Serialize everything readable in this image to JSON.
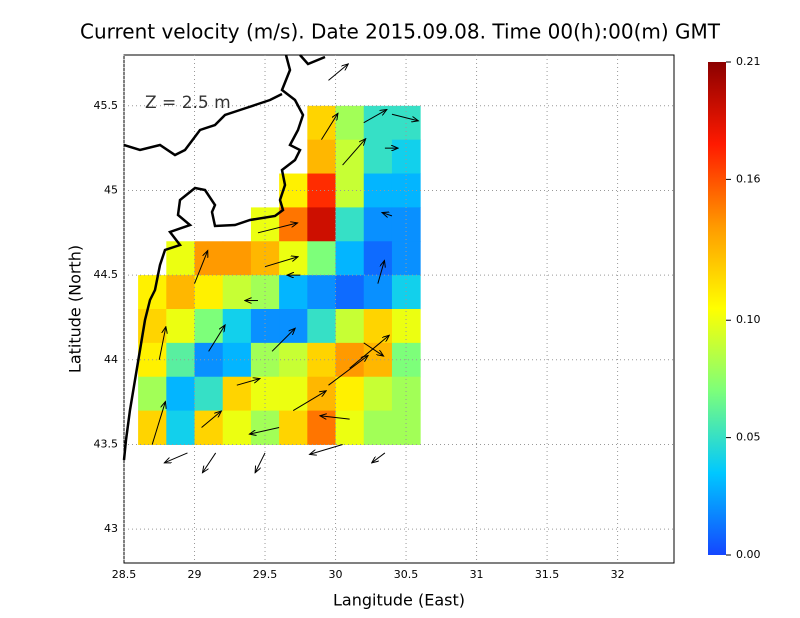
{
  "chart_data": {
    "type": "heatmap",
    "title": "Current velocity (m/s). Date 2015.09.08. Time 00(h):00(m) GMT",
    "annotation": "Z = 2.5 m",
    "xlabel": "Langitude (East)",
    "ylabel": "Latitude (North)",
    "xlim": [
      28.5,
      32.4
    ],
    "ylim": [
      42.8,
      45.8
    ],
    "xticks": [
      28.5,
      29,
      29.5,
      30,
      30.5,
      31,
      31.5,
      32
    ],
    "yticks": [
      43,
      43.5,
      44,
      44.5,
      45,
      45.5
    ],
    "grid": true,
    "x": [
      28.7,
      28.9,
      29.1,
      29.3,
      29.5,
      29.7,
      29.9,
      30.1,
      30.3,
      30.5
    ],
    "y": [
      45.4,
      45.2,
      45.0,
      44.8,
      44.6,
      44.4,
      44.2,
      44.0,
      43.8,
      43.6
    ],
    "values": [
      [
        null,
        null,
        null,
        null,
        null,
        null,
        0.12,
        0.08,
        0.05,
        0.05
      ],
      [
        null,
        null,
        null,
        null,
        null,
        null,
        0.13,
        0.09,
        0.05,
        0.04
      ],
      [
        null,
        null,
        null,
        null,
        null,
        0.11,
        0.17,
        0.09,
        0.03,
        0.03
      ],
      [
        null,
        null,
        null,
        null,
        0.1,
        0.15,
        0.19,
        0.05,
        0.02,
        0.02
      ],
      [
        null,
        0.1,
        0.14,
        0.14,
        0.13,
        0.1,
        0.07,
        0.03,
        0.01,
        0.02
      ],
      [
        0.11,
        0.13,
        0.11,
        0.09,
        0.08,
        0.03,
        0.02,
        0.01,
        0.02,
        0.04
      ],
      [
        0.12,
        0.1,
        0.07,
        0.04,
        0.02,
        0.02,
        0.05,
        0.09,
        0.12,
        0.1
      ],
      [
        0.11,
        0.06,
        0.02,
        0.03,
        0.08,
        0.09,
        0.12,
        0.14,
        0.13,
        0.07
      ],
      [
        0.08,
        0.03,
        0.05,
        0.12,
        0.1,
        0.1,
        0.13,
        0.11,
        0.09,
        0.08
      ],
      [
        0.12,
        0.04,
        0.12,
        0.1,
        0.08,
        0.12,
        0.15,
        0.1,
        0.08,
        0.08
      ]
    ],
    "colormap": [
      "#1446ff",
      "#00c8ff",
      "#7dff7a",
      "#ffff00",
      "#ff9a00",
      "#ff1a00",
      "#8b0000"
    ],
    "clim": [
      0,
      0.21
    ],
    "cticks": [
      {
        "value": 0,
        "label": "0.00"
      },
      0.05,
      {
        "value": 0.1,
        "label": "0.10"
      },
      0.16,
      0.21
    ],
    "vectors": [
      {
        "lon": 29.95,
        "lat": 45.65,
        "u": 0.06,
        "v": 0.05
      },
      {
        "lon": 30.2,
        "lat": 45.4,
        "u": 0.07,
        "v": 0.04
      },
      {
        "lon": 30.4,
        "lat": 45.45,
        "u": 0.08,
        "v": -0.02
      },
      {
        "lon": 29.9,
        "lat": 45.3,
        "u": 0.05,
        "v": 0.08
      },
      {
        "lon": 30.05,
        "lat": 45.15,
        "u": 0.07,
        "v": 0.08
      },
      {
        "lon": 30.35,
        "lat": 45.25,
        "u": 0.04,
        "v": 0
      },
      {
        "lon": 29.45,
        "lat": 44.75,
        "u": 0.12,
        "v": 0.03
      },
      {
        "lon": 29.5,
        "lat": 44.55,
        "u": 0.1,
        "v": 0.03
      },
      {
        "lon": 29.0,
        "lat": 44.45,
        "u": 0.04,
        "v": 0.1
      },
      {
        "lon": 29.45,
        "lat": 44.35,
        "u": -0.04,
        "v": 0
      },
      {
        "lon": 29.75,
        "lat": 44.5,
        "u": -0.04,
        "v": 0
      },
      {
        "lon": 30.4,
        "lat": 44.85,
        "u": -0.03,
        "v": 0.01
      },
      {
        "lon": 28.75,
        "lat": 44.0,
        "u": 0.02,
        "v": 0.1
      },
      {
        "lon": 29.1,
        "lat": 44.05,
        "u": 0.05,
        "v": 0.08
      },
      {
        "lon": 29.55,
        "lat": 44.05,
        "u": 0.07,
        "v": 0.07
      },
      {
        "lon": 30.1,
        "lat": 43.95,
        "u": 0.12,
        "v": 0.1
      },
      {
        "lon": 30.2,
        "lat": 44.1,
        "u": 0.06,
        "v": -0.04
      },
      {
        "lon": 29.3,
        "lat": 43.85,
        "u": 0.07,
        "v": 0.02
      },
      {
        "lon": 29.7,
        "lat": 43.7,
        "u": 0.1,
        "v": 0.06
      },
      {
        "lon": 29.95,
        "lat": 43.85,
        "u": 0.12,
        "v": 0.09
      },
      {
        "lon": 30.1,
        "lat": 43.65,
        "u": -0.09,
        "v": 0.01
      },
      {
        "lon": 29.6,
        "lat": 43.6,
        "u": -0.09,
        "v": -0.02
      },
      {
        "lon": 29.05,
        "lat": 43.6,
        "u": 0.06,
        "v": 0.05
      },
      {
        "lon": 28.95,
        "lat": 43.45,
        "u": -0.07,
        "v": -0.03
      },
      {
        "lon": 29.15,
        "lat": 43.45,
        "u": -0.04,
        "v": -0.06
      },
      {
        "lon": 29.5,
        "lat": 43.45,
        "u": -0.03,
        "v": -0.06
      },
      {
        "lon": 30.05,
        "lat": 43.5,
        "u": -0.1,
        "v": -0.03
      },
      {
        "lon": 30.35,
        "lat": 43.45,
        "u": -0.04,
        "v": -0.03
      },
      {
        "lon": 30.3,
        "lat": 44.45,
        "u": 0.02,
        "v": 0.07
      },
      {
        "lon": 28.7,
        "lat": 43.5,
        "u": 0.04,
        "v": 0.13
      }
    ]
  }
}
